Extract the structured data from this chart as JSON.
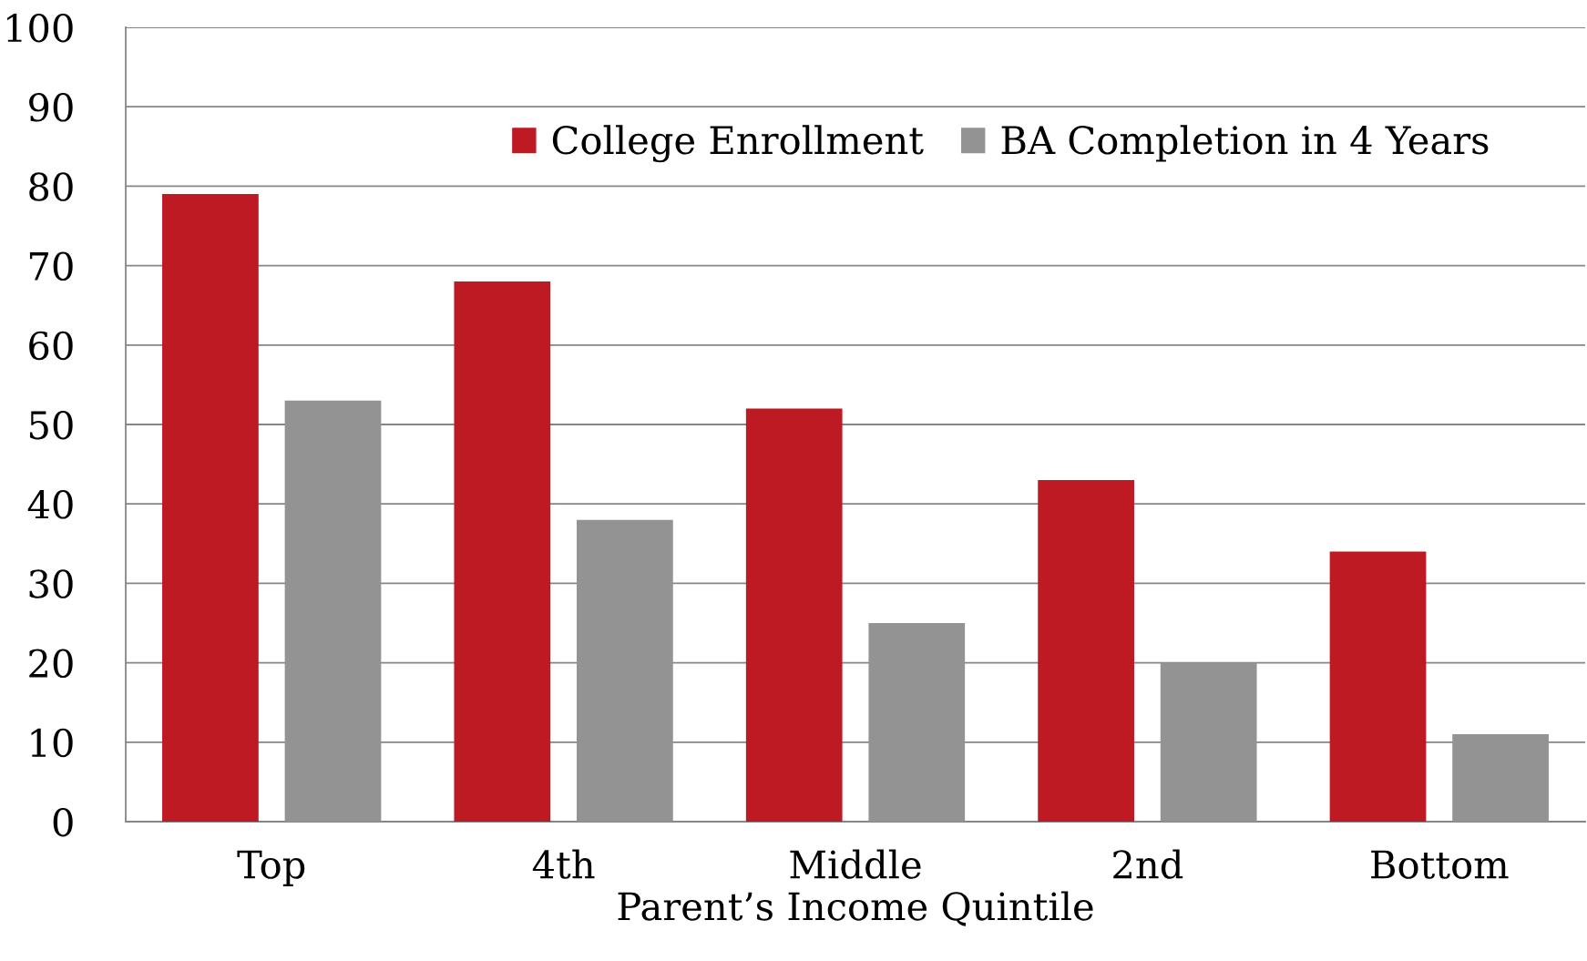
{
  "chart_data": {
    "type": "bar",
    "xlabel": "Parent’s Income Quintile",
    "categories": [
      "Top",
      "4th",
      "Middle",
      "2nd",
      "Bottom"
    ],
    "series": [
      {
        "name": "College Enrollment",
        "color": "#be1a23",
        "values": [
          79,
          68,
          52,
          43,
          34
        ]
      },
      {
        "name": "BA Completion in 4 Years",
        "color": "#939393",
        "values": [
          53,
          38,
          25,
          20,
          11
        ]
      }
    ],
    "ylim": [
      0,
      100
    ],
    "yticks": [
      0,
      10,
      20,
      30,
      40,
      50,
      60,
      70,
      80,
      90,
      100
    ],
    "grid": "y",
    "legend": "top"
  }
}
